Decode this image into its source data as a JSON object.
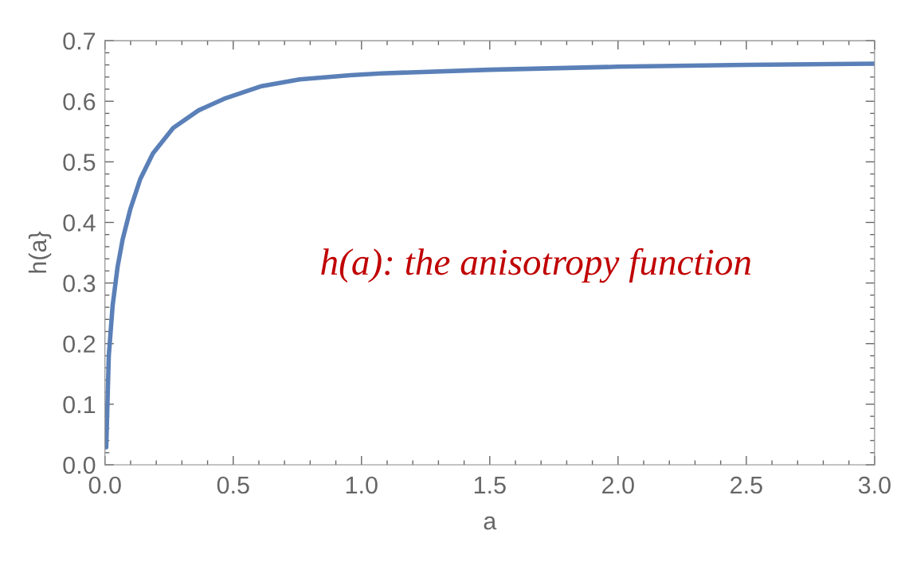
{
  "chart_data": {
    "type": "line",
    "xlabel": "a",
    "ylabel": "h(a}",
    "annotations": [
      "h(a): the anisotropy function"
    ],
    "series": [
      {
        "color": "#5b80b8",
        "x": [
          0.005,
          0.015,
          0.03,
          0.049,
          0.069,
          0.099,
          0.138,
          0.187,
          0.266,
          0.365,
          0.464,
          0.611,
          0.759,
          0.957,
          1.075,
          1.5,
          2.0,
          2.5,
          3.0
        ],
        "values": [
          0.029,
          0.18,
          0.263,
          0.326,
          0.372,
          0.422,
          0.472,
          0.514,
          0.556,
          0.585,
          0.604,
          0.625,
          0.636,
          0.643,
          0.646,
          0.652,
          0.657,
          0.66,
          0.662
        ]
      }
    ],
    "xlim": [
      0,
      3.0
    ],
    "ylim": [
      0,
      0.7
    ],
    "xticks": [
      {
        "value": 0,
        "label": "0.0"
      },
      0.5,
      {
        "value": 1,
        "label": "1.0"
      },
      1.5,
      {
        "value": 2,
        "label": "2.0"
      },
      2.5,
      {
        "value": 3,
        "label": "3.0"
      }
    ],
    "yticks": [
      {
        "value": 0,
        "label": "0.0"
      },
      0.1,
      0.2,
      0.3,
      0.4,
      0.5,
      0.6,
      0.7
    ],
    "grid": false,
    "marker": "none",
    "line_style": "solid",
    "legend": false
  }
}
